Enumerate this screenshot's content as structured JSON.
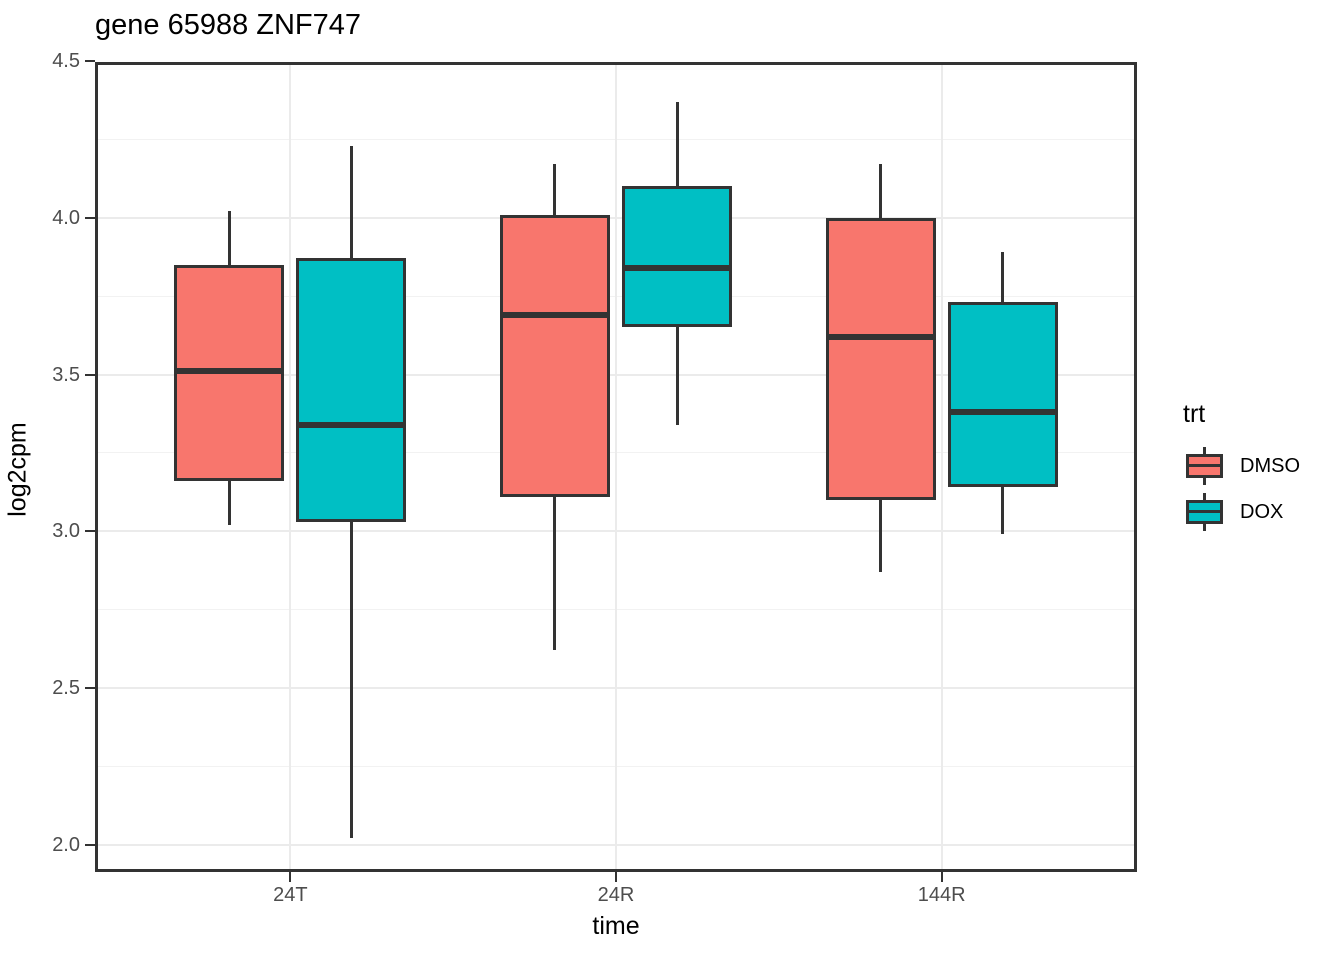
{
  "title": "gene 65988 ZNF747",
  "axes": {
    "x": {
      "label": "time",
      "categories": [
        "24T",
        "24R",
        "144R"
      ]
    },
    "y": {
      "label": "log2cpm",
      "tick_labels": [
        "2.0",
        "2.5",
        "3.0",
        "3.5",
        "4.0",
        "4.5"
      ]
    }
  },
  "legend": {
    "title": "trt",
    "entries": [
      {
        "label": "DMSO",
        "color": "#F8766D"
      },
      {
        "label": "DOX",
        "color": "#00BFC4"
      }
    ]
  },
  "colors": {
    "dmso_fill": "#F8766D",
    "dox_fill": "#00BFC4",
    "box_border": "#333333",
    "grid_major": "#EBEBEB",
    "grid_minor": "#F2F2F2",
    "axis_text": "#4D4D4D",
    "panel_border": "#333333"
  },
  "chart_data": {
    "type": "boxplot",
    "title": "gene 65988 ZNF747",
    "xlabel": "time",
    "ylabel": "log2cpm",
    "categories": [
      "24T",
      "24R",
      "144R"
    ],
    "legend_title": "trt",
    "legend_position": "right",
    "grid": true,
    "ylim": [
      1.91,
      4.5
    ],
    "yticks": [
      2.0,
      2.5,
      3.0,
      3.5,
      4.0,
      4.5
    ],
    "yticks_minor": [
      2.25,
      2.75,
      3.25,
      3.75,
      4.25
    ],
    "series": [
      {
        "name": "DMSO",
        "color": "#F8766D",
        "boxes": [
          {
            "category": "24T",
            "whisker_low": 3.03,
            "q1": 3.17,
            "median": 3.52,
            "q3": 3.86,
            "whisker_high": 4.03
          },
          {
            "category": "24R",
            "whisker_low": 2.63,
            "q1": 3.12,
            "median": 3.7,
            "q3": 4.02,
            "whisker_high": 4.18
          },
          {
            "category": "144R",
            "whisker_low": 2.88,
            "q1": 3.11,
            "median": 3.63,
            "q3": 4.01,
            "whisker_high": 4.18
          }
        ]
      },
      {
        "name": "DOX",
        "color": "#00BFC4",
        "boxes": [
          {
            "category": "24T",
            "whisker_low": 2.03,
            "q1": 3.04,
            "median": 3.35,
            "q3": 3.88,
            "whisker_high": 4.24
          },
          {
            "category": "24R",
            "whisker_low": 3.35,
            "q1": 3.66,
            "median": 3.85,
            "q3": 4.11,
            "whisker_high": 4.38
          },
          {
            "category": "144R",
            "whisker_low": 3.0,
            "q1": 3.15,
            "median": 3.39,
            "q3": 3.74,
            "whisker_high": 3.9
          }
        ]
      }
    ]
  }
}
